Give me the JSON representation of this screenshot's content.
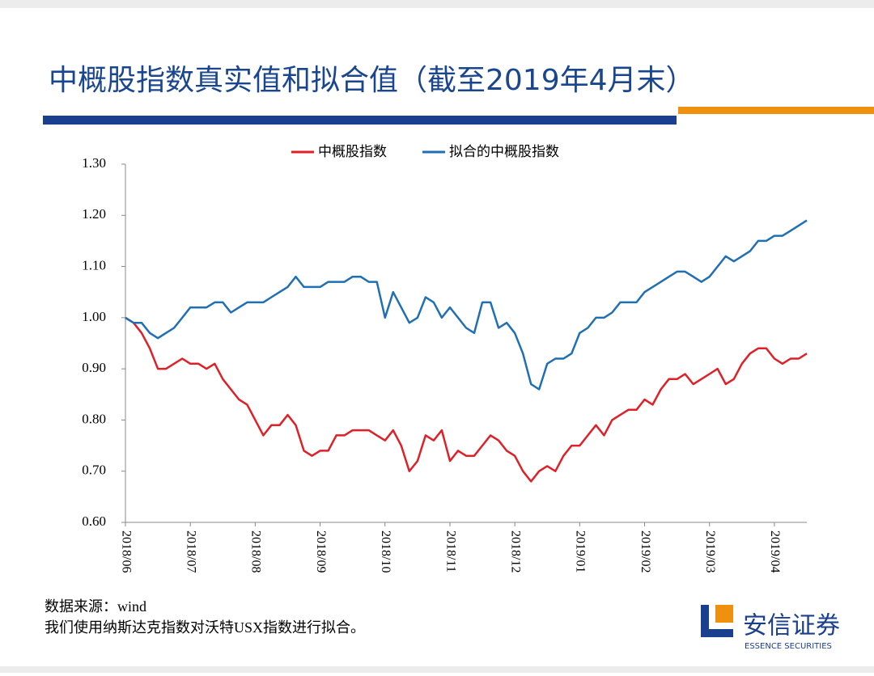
{
  "header": {
    "title": "中概股指数真实值和拟合值（截至2019年4月末）"
  },
  "chart_data": {
    "type": "line",
    "categories": [
      "2018/06",
      null,
      null,
      null,
      null,
      null,
      null,
      null,
      "2018/07",
      null,
      null,
      null,
      null,
      null,
      null,
      null,
      "2018/08",
      null,
      null,
      null,
      null,
      null,
      null,
      null,
      "2018/09",
      null,
      null,
      null,
      null,
      null,
      null,
      null,
      "2018/10",
      null,
      null,
      null,
      null,
      null,
      null,
      null,
      "2018/11",
      null,
      null,
      null,
      null,
      null,
      null,
      null,
      "2018/12",
      null,
      null,
      null,
      null,
      null,
      null,
      null,
      "2019/01",
      null,
      null,
      null,
      null,
      null,
      null,
      null,
      "2019/02",
      null,
      null,
      null,
      null,
      null,
      null,
      null,
      "2019/03",
      null,
      null,
      null,
      null,
      null,
      null,
      null,
      "2019/04",
      null,
      null,
      null,
      null
    ],
    "series": [
      {
        "name": "中概股指数",
        "color": "#e01f26",
        "values": [
          1.0,
          0.99,
          0.97,
          0.94,
          0.9,
          0.9,
          0.91,
          0.92,
          0.91,
          0.91,
          0.9,
          0.91,
          0.88,
          0.86,
          0.84,
          0.83,
          0.8,
          0.77,
          0.79,
          0.79,
          0.81,
          0.79,
          0.74,
          0.73,
          0.74,
          0.74,
          0.77,
          0.77,
          0.78,
          0.78,
          0.78,
          0.77,
          0.76,
          0.78,
          0.75,
          0.7,
          0.72,
          0.77,
          0.76,
          0.78,
          0.72,
          0.74,
          0.73,
          0.73,
          0.75,
          0.77,
          0.76,
          0.74,
          0.73,
          0.7,
          0.68,
          0.7,
          0.71,
          0.7,
          0.73,
          0.75,
          0.75,
          0.77,
          0.79,
          0.77,
          0.8,
          0.81,
          0.82,
          0.82,
          0.84,
          0.83,
          0.86,
          0.88,
          0.88,
          0.89,
          0.87,
          0.88,
          0.89,
          0.9,
          0.87,
          0.88,
          0.91,
          0.93,
          0.94,
          0.94,
          0.92,
          0.91,
          0.92,
          0.92,
          0.93
        ]
      },
      {
        "name": "拟合的中概股指数",
        "color": "#1f6fb4",
        "values": [
          1.0,
          0.99,
          0.99,
          0.97,
          0.96,
          0.97,
          0.98,
          1.0,
          1.02,
          1.02,
          1.02,
          1.03,
          1.03,
          1.01,
          1.02,
          1.03,
          1.03,
          1.03,
          1.04,
          1.05,
          1.06,
          1.08,
          1.06,
          1.06,
          1.06,
          1.07,
          1.07,
          1.07,
          1.08,
          1.08,
          1.07,
          1.07,
          1.0,
          1.05,
          1.02,
          0.99,
          1.0,
          1.04,
          1.03,
          1.0,
          1.02,
          1.0,
          0.98,
          0.97,
          1.03,
          1.03,
          0.98,
          0.99,
          0.97,
          0.93,
          0.87,
          0.86,
          0.91,
          0.92,
          0.92,
          0.93,
          0.97,
          0.98,
          1.0,
          1.0,
          1.01,
          1.03,
          1.03,
          1.03,
          1.05,
          1.06,
          1.07,
          1.08,
          1.09,
          1.09,
          1.08,
          1.07,
          1.08,
          1.1,
          1.12,
          1.11,
          1.12,
          1.13,
          1.15,
          1.15,
          1.16,
          1.16,
          1.17,
          1.18,
          1.19
        ]
      }
    ],
    "ylim": [
      0.6,
      1.3
    ],
    "yticks": [
      {
        "value": 0.6,
        "label": "0.60"
      },
      {
        "value": 0.7,
        "label": "0.70"
      },
      {
        "value": 0.8,
        "label": "0.80"
      },
      {
        "value": 0.9,
        "label": "0.90"
      },
      {
        "value": 1.0,
        "label": "1.00"
      },
      {
        "value": 1.1,
        "label": "1.10"
      },
      {
        "value": 1.2,
        "label": "1.20"
      },
      {
        "value": 1.3,
        "label": "1.30"
      }
    ],
    "grid": false,
    "legend": "top"
  },
  "footer": {
    "source": "数据来源：wind",
    "note": "我们使用纳斯达克指数对沃特USX指数进行拟合。"
  },
  "logo": {
    "name": "安信证券",
    "english": "ESSENCE SECURITIES"
  }
}
